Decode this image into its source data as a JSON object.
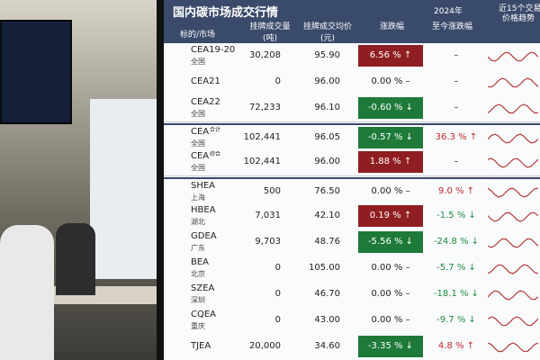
{
  "header": {
    "title": "国内碳市场成交行情",
    "year": "2024年",
    "trend_top": "近15个交易",
    "trend_bottom": "价格趋势",
    "columns": [
      "标的/市场",
      "挂牌成交量(吨)",
      "挂牌成交均价(元)",
      "涨跌幅",
      "至今涨跌幅"
    ]
  },
  "table": {
    "rows": [
      {
        "code": "CEA19-20",
        "market": "全国",
        "volume": "30,208",
        "price": "95.90",
        "change": "6.56 % ↑",
        "ytd": "–"
      },
      {
        "code": "CEA21",
        "volume": "0",
        "price": "96.00",
        "change": "0.00 % –",
        "ytd": "–"
      },
      {
        "code": "CEA22",
        "market": "全国",
        "volume": "72,233",
        "price": "96.10",
        "change": "-0.60 % ↓",
        "ytd": "–"
      },
      {
        "code": "CEA",
        "sup": "合计",
        "market": "全国",
        "volume": "102,441",
        "price": "96.05",
        "change": "-0.57 % ↓",
        "ytd": "36.3 % ↑"
      },
      {
        "code": "CEA",
        "sup": "综合",
        "market": "全国",
        "volume": "102,441",
        "price": "96.00",
        "change": "1.88 % ↑",
        "ytd": "–"
      },
      {
        "code": "SHEA",
        "market": "上海",
        "volume": "500",
        "price": "76.50",
        "change": "0.00 % –",
        "ytd": "9.0 % ↑"
      },
      {
        "code": "HBEA",
        "market": "湖北",
        "volume": "7,031",
        "price": "42.10",
        "change": "0.19 % ↑",
        "ytd": "-1.5 % ↓"
      },
      {
        "code": "GDEA",
        "market": "广东",
        "volume": "9,703",
        "price": "48.76",
        "change": "-5.56 % ↓",
        "ytd": "-24.8 % ↓"
      },
      {
        "code": "BEA",
        "market": "北京",
        "volume": "0",
        "price": "105.00",
        "change": "0.00 % –",
        "ytd": "-5.7 % ↓"
      },
      {
        "code": "SZEA",
        "market": "深圳",
        "volume": "0",
        "price": "46.70",
        "change": "0.00 % –",
        "ytd": "-18.1 % ↓"
      },
      {
        "code": "CQEA",
        "market": "重庆",
        "volume": "0",
        "price": "43.00",
        "change": "0.00 % –",
        "ytd": "-9.7 % ↓"
      },
      {
        "code": "TJEA",
        "volume": "20,000",
        "price": "34.60",
        "change": "-3.35 % ↓",
        "ytd": "4.8 % ↑"
      }
    ]
  }
}
